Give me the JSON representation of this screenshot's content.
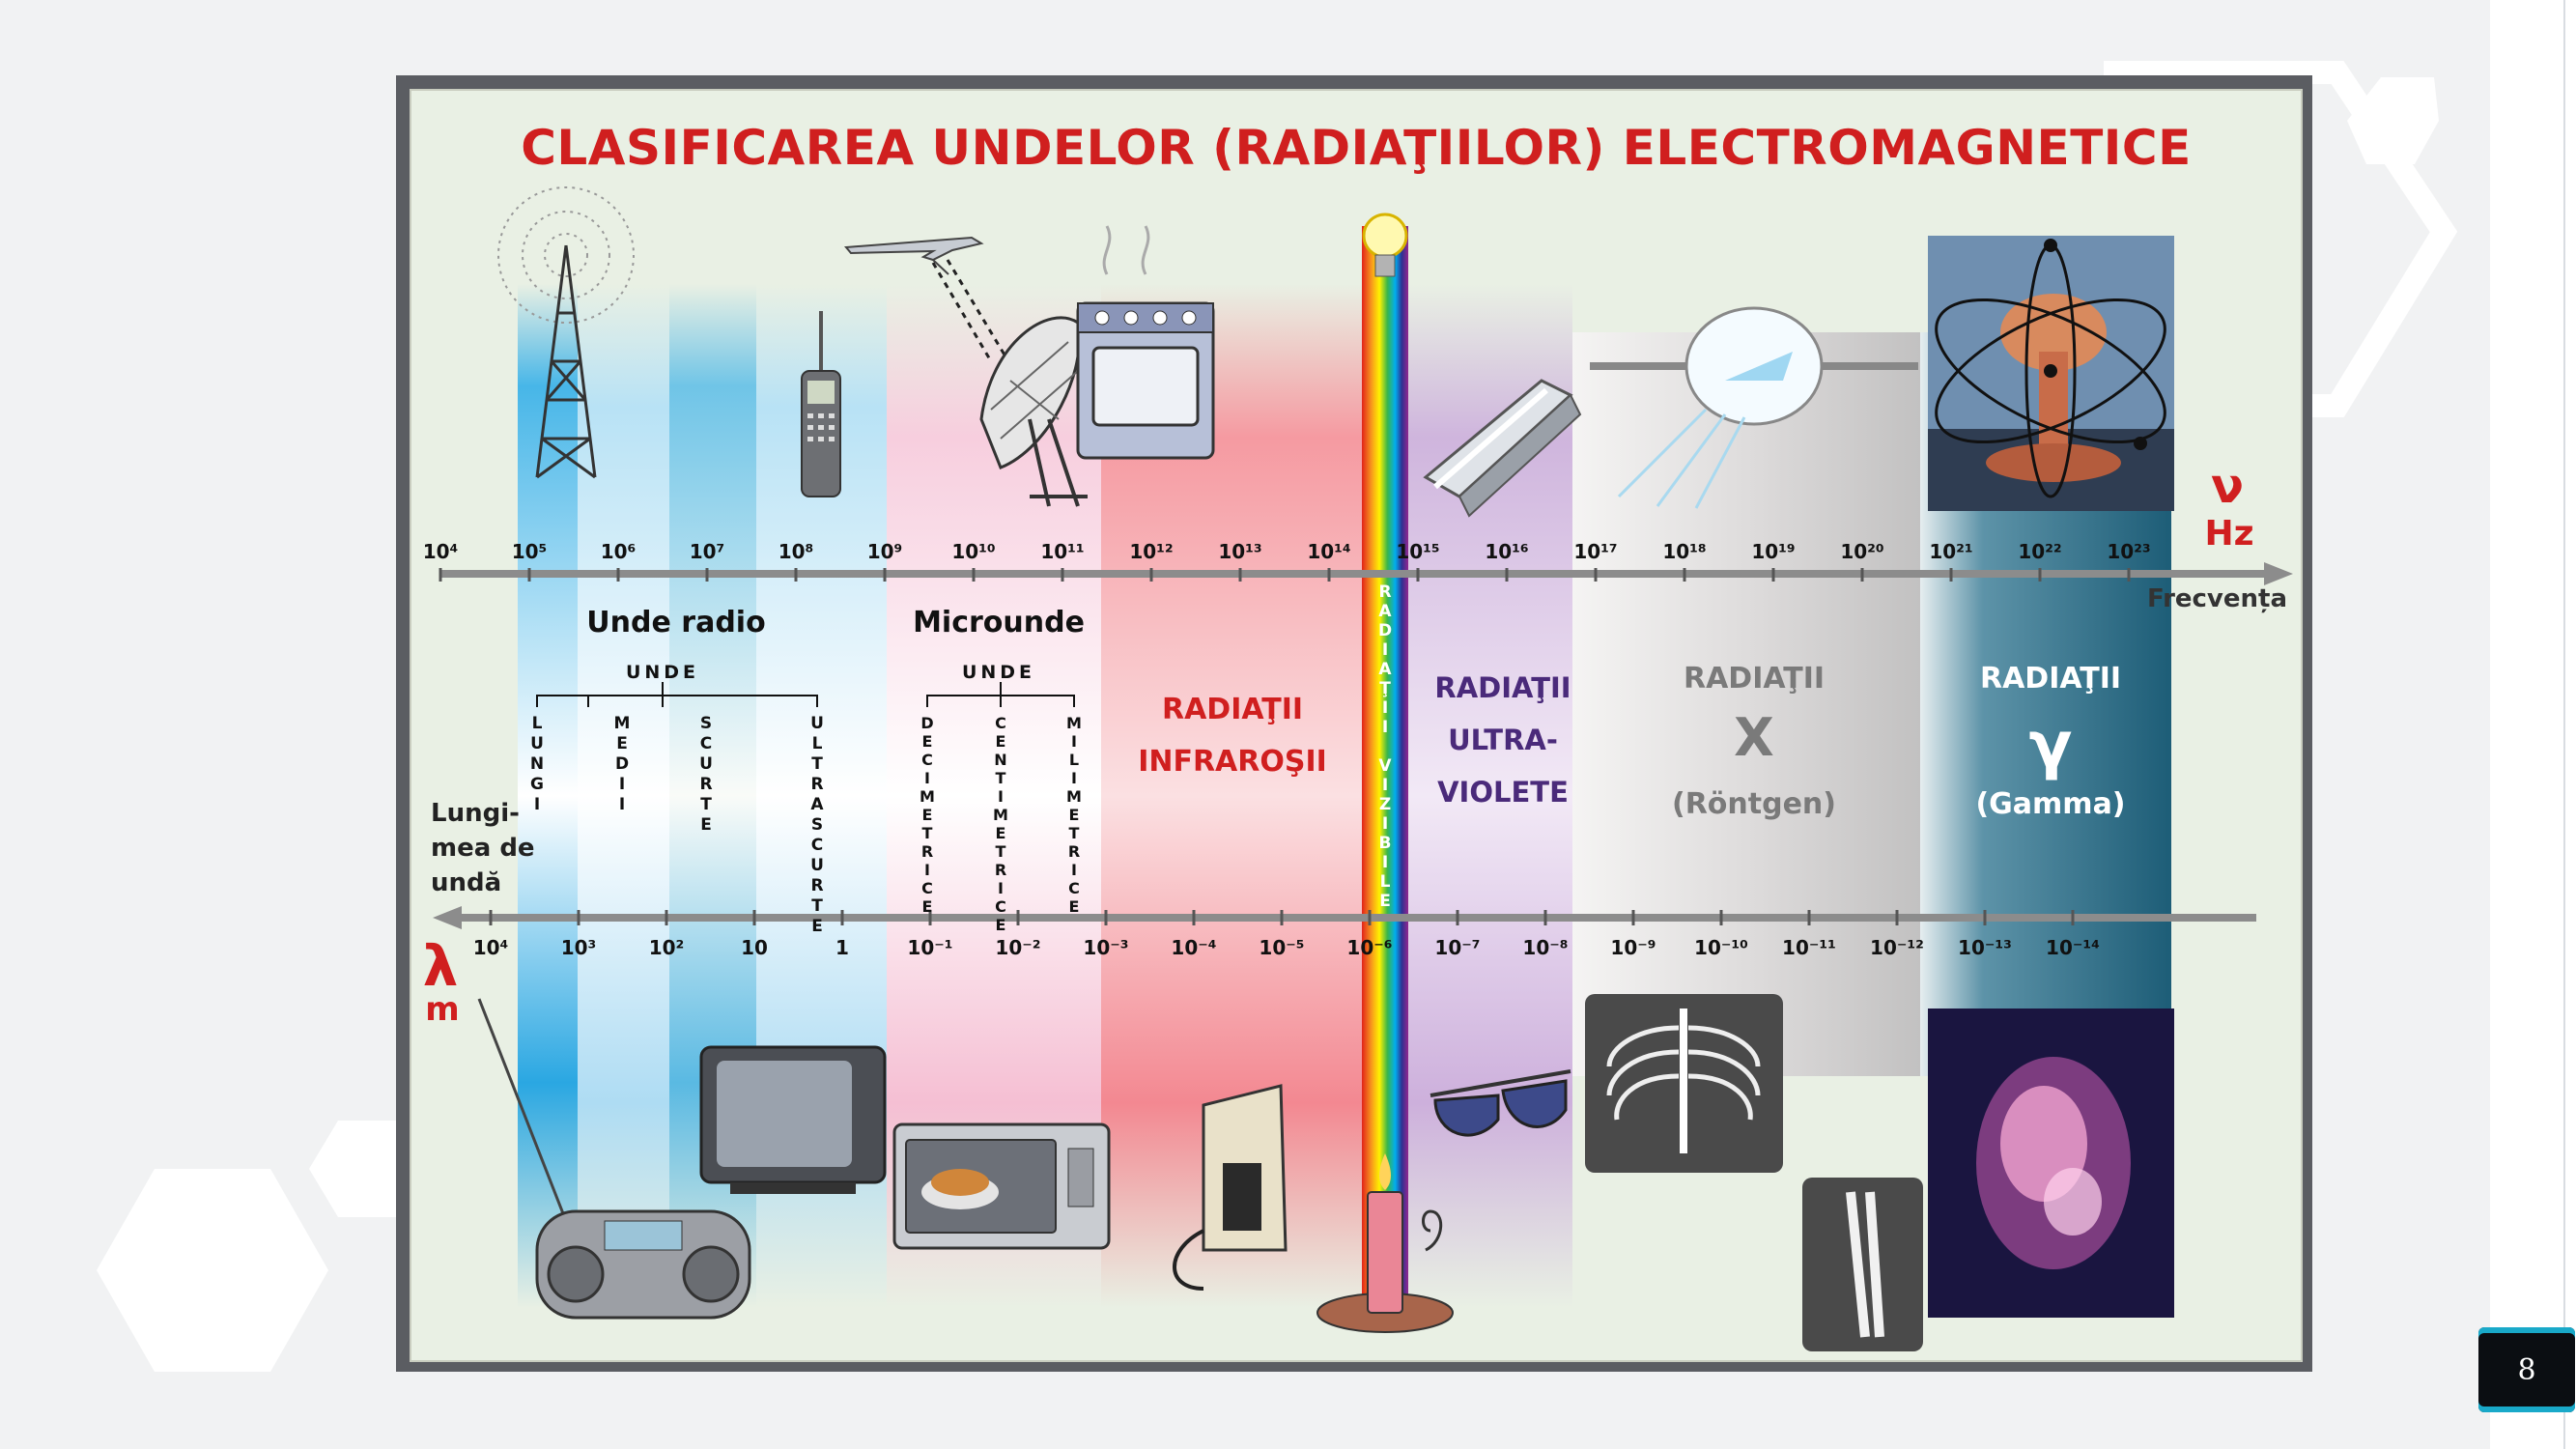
{
  "title": "CLASIFICAREA UNDELOR (RADIAŢIILOR) ELECTROMAGNETICE",
  "frequency_axis": {
    "symbol": "ν",
    "unit": "Hz",
    "name": "Frecvența",
    "tick_labels": [
      "10⁴",
      "10⁵",
      "10⁶",
      "10⁷",
      "10⁸",
      "10⁹",
      "10¹⁰",
      "10¹¹",
      "10¹²",
      "10¹³",
      "10¹⁴",
      "10¹⁵",
      "10¹⁶",
      "10¹⁷",
      "10¹⁸",
      "10¹⁹",
      "10²⁰",
      "10²¹",
      "10²²",
      "10²³"
    ]
  },
  "wavelength_axis": {
    "symbol": "λ",
    "unit": "m",
    "name": "Lungi-\nmea de\nundă",
    "tick_labels": [
      "10⁴",
      "10³",
      "10²",
      "10",
      "1",
      "10⁻¹",
      "10⁻²",
      "10⁻³",
      "10⁻⁴",
      "10⁻⁵",
      "10⁻⁶",
      "10⁻⁷",
      "10⁻⁸",
      "10⁻⁹",
      "10⁻¹⁰",
      "10⁻¹¹",
      "10⁻¹²",
      "10⁻¹³",
      "10⁻¹⁴"
    ]
  },
  "bands": {
    "radio": {
      "name": "Unde radio",
      "group": "UNDE",
      "subtypes": [
        "LUNGI",
        "MEDII",
        "SCURTE",
        "ULTRASCURTE"
      ]
    },
    "micro": {
      "name": "Microunde",
      "group": "UNDE",
      "subtypes": [
        "DECIMETRICE",
        "CENTIMETRICE",
        "MILIMETRICE"
      ]
    },
    "infrared": {
      "line1": "RADIAŢII",
      "line2": "INFRAROŞII"
    },
    "visible": {
      "vertical": "RADIAŢII VIZIBILE"
    },
    "ultraviolet": {
      "line1": "RADIAŢII",
      "line2": "ULTRA-",
      "line3": "VIOLETE"
    },
    "xray": {
      "line1": "RADIAŢII",
      "symbol": "X",
      "line3": "(Röntgen)"
    },
    "gamma": {
      "line1": "RADIAŢII",
      "symbol": "γ",
      "line3": "(Gamma)"
    }
  },
  "icons": [
    "radio-tower-icon",
    "mobile-phone-icon",
    "airplane-icon",
    "satellite-dish-icon",
    "oven-icon",
    "light-bulb-icon",
    "fluorescent-lamp-icon",
    "xray-tube-icon",
    "nuclear-explosion-icon",
    "radio-cassette-icon",
    "television-icon",
    "microwave-oven-icon",
    "iron-icon",
    "candle-icon",
    "sunglasses-icon",
    "chest-xray-icon",
    "bone-xray-icon",
    "nebula-icon"
  ],
  "colors": {
    "title": "#d01f1f",
    "radio_blue": "#1ba3df",
    "micro_pink": "#f3b6cc",
    "ir_red": "#f4808a",
    "uv_violet": "#c7a8d8",
    "gamma_teal": "#23667f"
  },
  "page_number": "8"
}
